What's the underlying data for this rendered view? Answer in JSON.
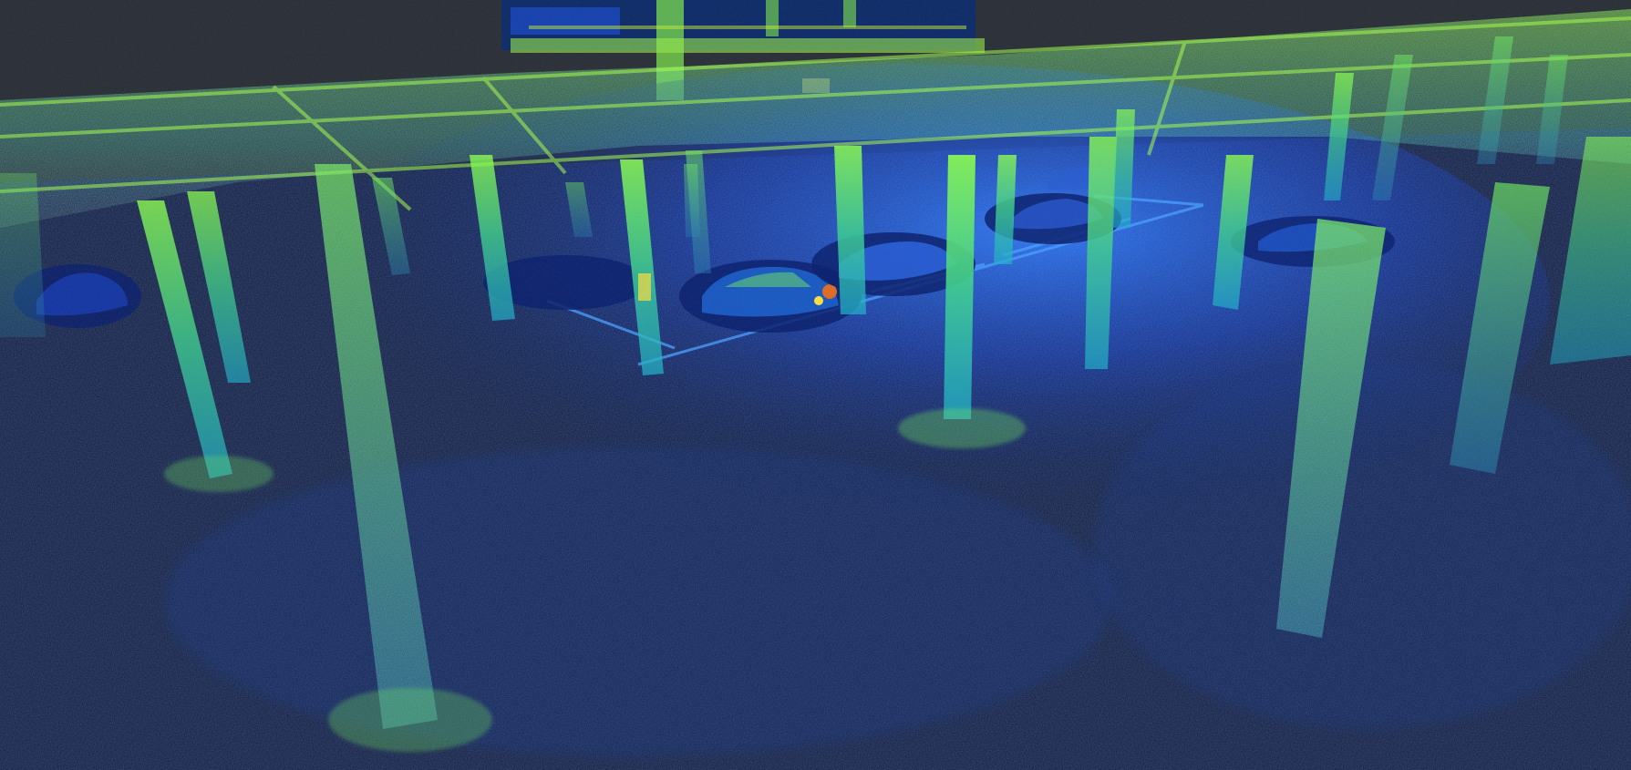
{
  "scene": {
    "subject": "lidar-point-cloud-parking-garage",
    "colors": {
      "background": "#2b2e33",
      "floor_dark": "#0d1a4a",
      "floor_blue": "#1a3fb8",
      "floor_bright": "#2f7cff",
      "point_low": "#1533a8",
      "point_mid": "#1fb0c8",
      "point_high": "#8cff4a",
      "point_peak": "#d8ff38",
      "accent_orange": "#e06a20",
      "accent_yellow": "#ffe03a"
    }
  }
}
